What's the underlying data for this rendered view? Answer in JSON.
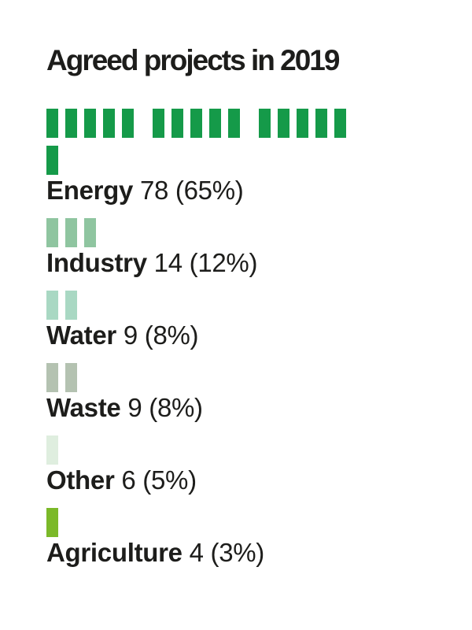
{
  "title": "Agreed projects in 2019",
  "colors": {
    "text": "#1D1D1B",
    "background": "#FFFFFF"
  },
  "chart_data": {
    "type": "unit-bar",
    "title": "Agreed projects in 2019",
    "unit_per_square": 5,
    "squares_per_group": 5,
    "max_groups_per_first_line": 3,
    "legend_position": "none",
    "grid": false,
    "categories": [
      "Energy",
      "Industry",
      "Water",
      "Waste",
      "Other",
      "Agriculture"
    ],
    "values": [
      78,
      14,
      9,
      9,
      6,
      4
    ],
    "percents": [
      65,
      12,
      8,
      8,
      5,
      3
    ],
    "rows": [
      {
        "label": "Energy",
        "value": 78,
        "percent": 65,
        "value_display": "78 (65%)",
        "squares": 16,
        "color": "#159A49"
      },
      {
        "label": "Industry",
        "value": 14,
        "percent": 12,
        "value_display": "14 (12%)",
        "squares": 3,
        "color": "#8FC5A0"
      },
      {
        "label": "Water",
        "value": 9,
        "percent": 8,
        "value_display": "9 (8%)",
        "squares": 2,
        "color": "#A9D8C3"
      },
      {
        "label": "Waste",
        "value": 9,
        "percent": 8,
        "value_display": "9 (8%)",
        "squares": 2,
        "color": "#B4C2B1"
      },
      {
        "label": "Other",
        "value": 6,
        "percent": 5,
        "value_display": "6 (5%)",
        "squares": 1,
        "color": "#DFEEDF"
      },
      {
        "label": "Agriculture",
        "value": 4,
        "percent": 3,
        "value_display": "4 (3%)",
        "squares": 1,
        "color": "#7BB929"
      }
    ]
  }
}
